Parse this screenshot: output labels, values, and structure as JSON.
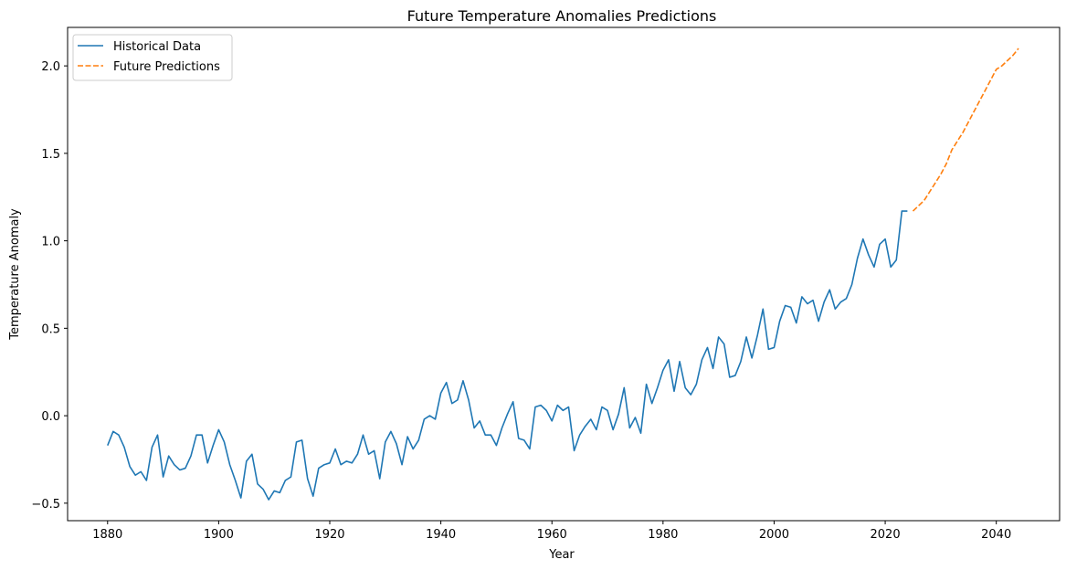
{
  "chart_data": {
    "type": "line",
    "title": "Future Temperature Anomalies Predictions",
    "xlabel": "Year",
    "ylabel": "Temperature Anomaly",
    "xlim": [
      1872.8,
      2051.4
    ],
    "ylim": [
      -0.6,
      2.22
    ],
    "xticks": [
      1880,
      1900,
      1920,
      1940,
      1960,
      1980,
      2000,
      2020,
      2040
    ],
    "yticks": [
      -0.5,
      0.0,
      0.5,
      1.0,
      1.5,
      2.0
    ],
    "ytick_labels": [
      "−0.5",
      "0.0",
      "0.5",
      "1.0",
      "1.5",
      "2.0"
    ],
    "grid": false,
    "legend_position": "top-left",
    "series": [
      {
        "name": "Historical Data",
        "color": "#1f77b4",
        "style": "solid",
        "x": [
          1880,
          1881,
          1882,
          1883,
          1884,
          1885,
          1886,
          1887,
          1888,
          1889,
          1890,
          1891,
          1892,
          1893,
          1894,
          1895,
          1896,
          1897,
          1898,
          1899,
          1900,
          1901,
          1902,
          1903,
          1904,
          1905,
          1906,
          1907,
          1908,
          1909,
          1910,
          1911,
          1912,
          1913,
          1914,
          1915,
          1916,
          1917,
          1918,
          1919,
          1920,
          1921,
          1922,
          1923,
          1924,
          1925,
          1926,
          1927,
          1928,
          1929,
          1930,
          1931,
          1932,
          1933,
          1934,
          1935,
          1936,
          1937,
          1938,
          1939,
          1940,
          1941,
          1942,
          1943,
          1944,
          1945,
          1946,
          1947,
          1948,
          1949,
          1950,
          1951,
          1952,
          1953,
          1954,
          1955,
          1956,
          1957,
          1958,
          1959,
          1960,
          1961,
          1962,
          1963,
          1964,
          1965,
          1966,
          1967,
          1968,
          1969,
          1970,
          1971,
          1972,
          1973,
          1974,
          1975,
          1976,
          1977,
          1978,
          1979,
          1980,
          1981,
          1982,
          1983,
          1984,
          1985,
          1986,
          1987,
          1988,
          1989,
          1990,
          1991,
          1992,
          1993,
          1994,
          1995,
          1996,
          1997,
          1998,
          1999,
          2000,
          2001,
          2002,
          2003,
          2004,
          2005,
          2006,
          2007,
          2008,
          2009,
          2010,
          2011,
          2012,
          2013,
          2014,
          2015,
          2016,
          2017,
          2018,
          2019,
          2020,
          2021,
          2022,
          2023,
          2024
        ],
        "y": [
          -0.17,
          -0.09,
          -0.11,
          -0.18,
          -0.29,
          -0.34,
          -0.32,
          -0.37,
          -0.18,
          -0.11,
          -0.35,
          -0.23,
          -0.28,
          -0.31,
          -0.3,
          -0.23,
          -0.11,
          -0.11,
          -0.27,
          -0.17,
          -0.08,
          -0.15,
          -0.28,
          -0.37,
          -0.47,
          -0.26,
          -0.22,
          -0.39,
          -0.42,
          -0.48,
          -0.43,
          -0.44,
          -0.37,
          -0.35,
          -0.15,
          -0.14,
          -0.36,
          -0.46,
          -0.3,
          -0.28,
          -0.27,
          -0.19,
          -0.28,
          -0.26,
          -0.27,
          -0.22,
          -0.11,
          -0.22,
          -0.2,
          -0.36,
          -0.15,
          -0.09,
          -0.16,
          -0.28,
          -0.12,
          -0.19,
          -0.14,
          -0.02,
          0.0,
          -0.02,
          0.13,
          0.19,
          0.07,
          0.09,
          0.2,
          0.09,
          -0.07,
          -0.03,
          -0.11,
          -0.11,
          -0.17,
          -0.07,
          0.01,
          0.08,
          -0.13,
          -0.14,
          -0.19,
          0.05,
          0.06,
          0.03,
          -0.03,
          0.06,
          0.03,
          0.05,
          -0.2,
          -0.11,
          -0.06,
          -0.02,
          -0.08,
          0.05,
          0.03,
          -0.08,
          0.01,
          0.16,
          -0.07,
          -0.01,
          -0.1,
          0.18,
          0.07,
          0.16,
          0.26,
          0.32,
          0.14,
          0.31,
          0.16,
          0.12,
          0.18,
          0.32,
          0.39,
          0.27,
          0.45,
          0.41,
          0.22,
          0.23,
          0.31,
          0.45,
          0.33,
          0.46,
          0.61,
          0.38,
          0.39,
          0.54,
          0.63,
          0.62,
          0.53,
          0.68,
          0.64,
          0.66,
          0.54,
          0.65,
          0.72,
          0.61,
          0.65,
          0.67,
          0.75,
          0.9,
          1.01,
          0.92,
          0.85,
          0.98,
          1.01,
          0.85,
          0.89,
          1.17,
          1.17
        ]
      },
      {
        "name": "Future Predictions",
        "color": "#ff7f0e",
        "style": "dashed",
        "x": [
          2025,
          2026,
          2027,
          2028,
          2029,
          2030,
          2031,
          2032,
          2033,
          2034,
          2035,
          2036,
          2037,
          2038,
          2039,
          2040,
          2041,
          2042,
          2043,
          2044
        ],
        "y": [
          1.17,
          1.2,
          1.23,
          1.28,
          1.33,
          1.38,
          1.44,
          1.52,
          1.57,
          1.62,
          1.68,
          1.74,
          1.8,
          1.86,
          1.92,
          1.98,
          2.0,
          2.03,
          2.06,
          2.1
        ]
      }
    ]
  }
}
